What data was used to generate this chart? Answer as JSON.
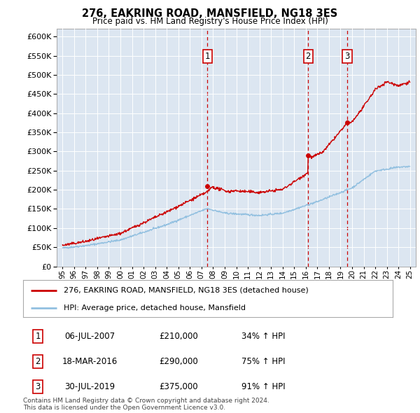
{
  "title": "276, EAKRING ROAD, MANSFIELD, NG18 3ES",
  "subtitle": "Price paid vs. HM Land Registry's House Price Index (HPI)",
  "background_color": "#dce6f1",
  "plot_bg_color": "#dce6f1",
  "legend_entry1": "276, EAKRING ROAD, MANSFIELD, NG18 3ES (detached house)",
  "legend_entry2": "HPI: Average price, detached house, Mansfield",
  "footer1": "Contains HM Land Registry data © Crown copyright and database right 2024.",
  "footer2": "This data is licensed under the Open Government Licence v3.0.",
  "sale_events": [
    {
      "num": 1,
      "date": "06-JUL-2007",
      "price": 210000,
      "pct": "34%",
      "year": 2007.51
    },
    {
      "num": 2,
      "date": "18-MAR-2016",
      "price": 290000,
      "pct": "75%",
      "year": 2016.21
    },
    {
      "num": 3,
      "date": "30-JUL-2019",
      "price": 375000,
      "pct": "91%",
      "year": 2019.57
    }
  ],
  "hpi_color": "#92c0e0",
  "price_color": "#cc0000",
  "vline_color": "#cc0000",
  "ylim": [
    0,
    620000
  ],
  "yticks": [
    0,
    50000,
    100000,
    150000,
    200000,
    250000,
    300000,
    350000,
    400000,
    450000,
    500000,
    550000,
    600000
  ],
  "xlim": [
    1994.5,
    2025.5
  ],
  "xticks": [
    1995,
    1996,
    1997,
    1998,
    1999,
    2000,
    2001,
    2002,
    2003,
    2004,
    2005,
    2006,
    2007,
    2008,
    2009,
    2010,
    2011,
    2012,
    2013,
    2014,
    2015,
    2016,
    2017,
    2018,
    2019,
    2020,
    2021,
    2022,
    2023,
    2024,
    2025
  ]
}
